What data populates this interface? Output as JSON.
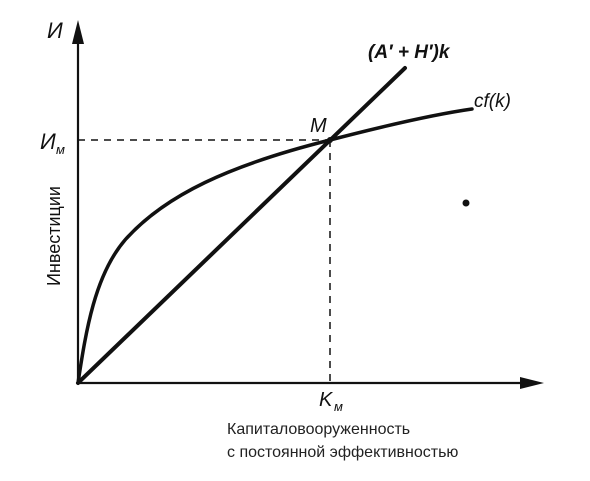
{
  "axes": {
    "y_symbol": "И",
    "y_title": "Инвестиции",
    "x_title_line1": "Капиталовооруженность",
    "x_title_line2": "с постоянной эффективностью"
  },
  "point": {
    "name": "M",
    "y_tick_main": "И",
    "y_tick_sub": "м",
    "x_tick_main": "K",
    "x_tick_sub": "м"
  },
  "curves": {
    "line_label": "(A′ + H′)k",
    "curve_label": "cf(k)"
  },
  "colors": {
    "ink": "#111111",
    "background": "#ffffff"
  }
}
